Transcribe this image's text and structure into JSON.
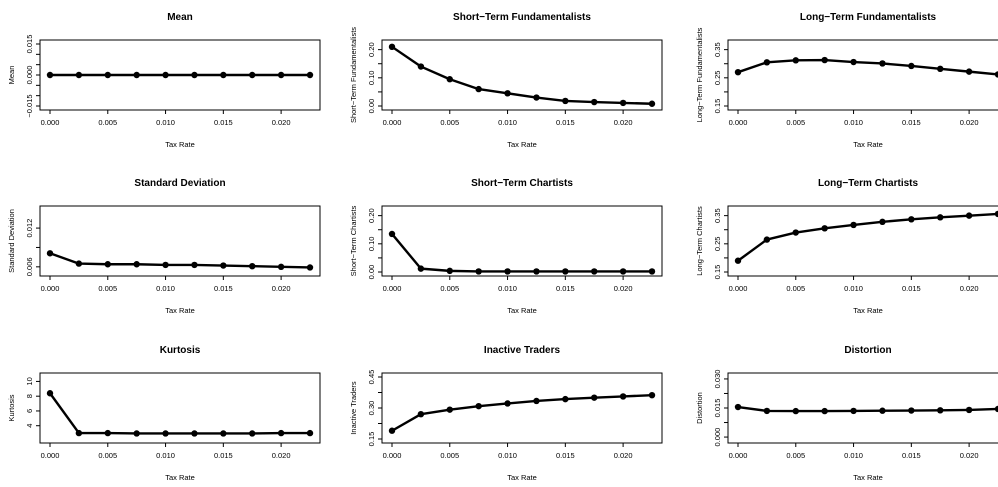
{
  "chart_data": [
    {
      "type": "line",
      "title": "Mean",
      "xlabel": "Tax Rate",
      "ylabel": "Mean",
      "x": [
        0.0,
        0.0025,
        0.005,
        0.0075,
        0.01,
        0.0125,
        0.015,
        0.0175,
        0.02,
        0.0225
      ],
      "y": [
        0.0,
        0.0,
        0.0,
        0.0,
        0.0,
        0.0,
        0.0,
        0.0,
        0.0,
        0.0
      ],
      "xlim": [
        0.0,
        0.0225
      ],
      "ylim": [
        -0.015,
        0.015
      ],
      "xticks": [
        "0.000",
        "0.005",
        "0.010",
        "0.015",
        "0.020"
      ],
      "yticks": [
        "-0.015",
        "0.000",
        "0.015"
      ],
      "yticks_minor": [
        -0.01,
        -0.005,
        0.005,
        0.01
      ],
      "yticks_label_map": {
        "-0.015": "−0.015",
        "0.000": "0.000",
        "0.015": "0.015"
      }
    },
    {
      "type": "line",
      "title": "Short−Term Fundamentalists",
      "xlabel": "Tax Rate",
      "ylabel": "Short−Term Fundamentalists",
      "x": [
        0.0,
        0.0025,
        0.005,
        0.0075,
        0.01,
        0.0125,
        0.015,
        0.0175,
        0.02,
        0.0225
      ],
      "y": [
        0.21,
        0.14,
        0.095,
        0.06,
        0.045,
        0.03,
        0.018,
        0.014,
        0.011,
        0.008
      ],
      "xlim": [
        0.0,
        0.0225
      ],
      "ylim": [
        0.0,
        0.22
      ],
      "xticks": [
        "0.000",
        "0.005",
        "0.010",
        "0.015",
        "0.020"
      ],
      "yticks": [
        "0.00",
        "0.10",
        "0.20"
      ],
      "yticks_minor": [
        0.05,
        0.15
      ]
    },
    {
      "type": "line",
      "title": "Long−Term Fundamentalists",
      "xlabel": "Tax Rate",
      "ylabel": "Long−Term Fundamentalists",
      "x": [
        0.0,
        0.0025,
        0.005,
        0.0075,
        0.01,
        0.0125,
        0.015,
        0.0175,
        0.02,
        0.0225
      ],
      "y": [
        0.27,
        0.305,
        0.312,
        0.313,
        0.306,
        0.301,
        0.292,
        0.282,
        0.272,
        0.262
      ],
      "xlim": [
        0.0,
        0.0225
      ],
      "ylim": [
        0.15,
        0.37
      ],
      "xticks": [
        "0.000",
        "0.005",
        "0.010",
        "0.015",
        "0.020"
      ],
      "yticks": [
        "0.15",
        "0.25",
        "0.35"
      ],
      "yticks_minor": [
        0.2,
        0.3
      ]
    },
    {
      "type": "line",
      "title": "Standard Deviation",
      "xlabel": "Tax Rate",
      "ylabel": "Standard Deviation",
      "x": [
        0.0,
        0.0025,
        0.005,
        0.0075,
        0.01,
        0.0125,
        0.015,
        0.0175,
        0.02,
        0.0225
      ],
      "y": [
        0.0081,
        0.0065,
        0.0064,
        0.0064,
        0.0063,
        0.0063,
        0.0062,
        0.0061,
        0.006,
        0.0059
      ],
      "xlim": [
        0.0,
        0.0225
      ],
      "ylim": [
        0.0052,
        0.0148
      ],
      "xticks": [
        "0.000",
        "0.005",
        "0.010",
        "0.015",
        "0.020"
      ],
      "yticks": [
        "0.006",
        "0.012"
      ],
      "yticks_minor": [
        0.009
      ]
    },
    {
      "type": "line",
      "title": "Short−Term Chartists",
      "xlabel": "Tax Rate",
      "ylabel": "Short−Term Chartists",
      "x": [
        0.0,
        0.0025,
        0.005,
        0.0075,
        0.01,
        0.0125,
        0.015,
        0.0175,
        0.02,
        0.0225
      ],
      "y": [
        0.135,
        0.012,
        0.004,
        0.002,
        0.002,
        0.002,
        0.002,
        0.002,
        0.002,
        0.002
      ],
      "xlim": [
        0.0,
        0.0225
      ],
      "ylim": [
        0.0,
        0.22
      ],
      "xticks": [
        "0.000",
        "0.005",
        "0.010",
        "0.015",
        "0.020"
      ],
      "yticks": [
        "0.00",
        "0.10",
        "0.20"
      ],
      "yticks_minor": [
        0.05,
        0.15
      ]
    },
    {
      "type": "line",
      "title": "Long−Term Chartists",
      "xlabel": "Tax Rate",
      "ylabel": "Long−Term Chartists",
      "x": [
        0.0,
        0.0025,
        0.005,
        0.0075,
        0.01,
        0.0125,
        0.015,
        0.0175,
        0.02,
        0.0225
      ],
      "y": [
        0.19,
        0.265,
        0.29,
        0.305,
        0.317,
        0.328,
        0.337,
        0.344,
        0.35,
        0.356
      ],
      "xlim": [
        0.0,
        0.0225
      ],
      "ylim": [
        0.15,
        0.37
      ],
      "xticks": [
        "0.000",
        "0.005",
        "0.010",
        "0.015",
        "0.020"
      ],
      "yticks": [
        "0.15",
        "0.25",
        "0.35"
      ],
      "yticks_minor": [
        0.2,
        0.3
      ]
    },
    {
      "type": "line",
      "title": "Kurtosis",
      "xlabel": "Tax Rate",
      "ylabel": "Kurtosis",
      "x": [
        0.0,
        0.0025,
        0.005,
        0.0075,
        0.01,
        0.0125,
        0.015,
        0.0175,
        0.02,
        0.0225
      ],
      "y": [
        8.4,
        3.0,
        3.0,
        2.95,
        2.95,
        2.95,
        2.95,
        2.95,
        3.0,
        3.0
      ],
      "xlim": [
        0.0,
        0.0225
      ],
      "ylim": [
        2.2,
        10.6
      ],
      "xticks": [
        "0.000",
        "0.005",
        "0.010",
        "0.015",
        "0.020"
      ],
      "yticks": [
        "4",
        "6",
        "8",
        "10"
      ]
    },
    {
      "type": "line",
      "title": "Inactive Traders",
      "xlabel": "Tax Rate",
      "ylabel": "Inactive Traders",
      "x": [
        0.0,
        0.0025,
        0.005,
        0.0075,
        0.01,
        0.0125,
        0.015,
        0.0175,
        0.02,
        0.0225
      ],
      "y": [
        0.19,
        0.27,
        0.292,
        0.309,
        0.322,
        0.334,
        0.343,
        0.35,
        0.356,
        0.362
      ],
      "xlim": [
        0.0,
        0.0225
      ],
      "ylim": [
        0.15,
        0.45
      ],
      "xticks": [
        "0.000",
        "0.005",
        "0.010",
        "0.015",
        "0.020"
      ],
      "yticks": [
        "0.15",
        "0.30",
        "0.45"
      ],
      "yticks_minor": [
        0.225,
        0.375
      ]
    },
    {
      "type": "line",
      "title": "Distortion",
      "xlabel": "Tax Rate",
      "ylabel": "Distortion",
      "x": [
        0.0,
        0.0025,
        0.005,
        0.0075,
        0.01,
        0.0125,
        0.015,
        0.0175,
        0.02,
        0.0225
      ],
      "y": [
        0.0155,
        0.0135,
        0.0134,
        0.0134,
        0.0135,
        0.0136,
        0.0137,
        0.0138,
        0.014,
        0.0145
      ],
      "xlim": [
        0.0,
        0.0225
      ],
      "ylim": [
        -0.001,
        0.031
      ],
      "xticks": [
        "0.000",
        "0.005",
        "0.010",
        "0.015",
        "0.020"
      ],
      "yticks": [
        "0.000",
        "0.015",
        "0.030"
      ],
      "yticks_minor": [
        0.0075,
        0.0225
      ]
    }
  ]
}
